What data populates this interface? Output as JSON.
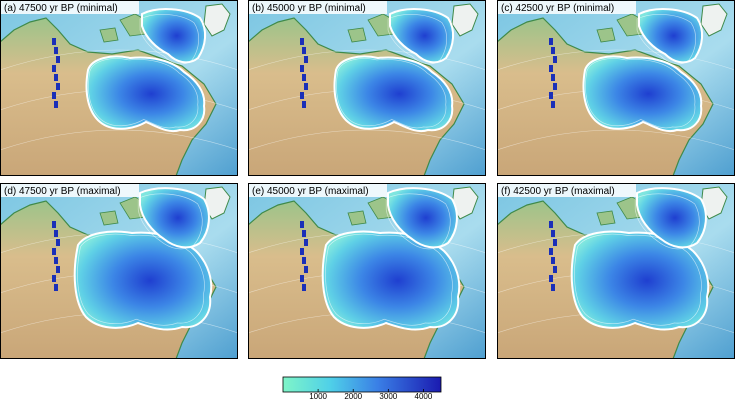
{
  "panels": [
    {
      "label": "(a) 47500 yr BP (minimal)"
    },
    {
      "label": "(b) 45000 yr BP (minimal)"
    },
    {
      "label": "(c) 42500 yr BP (minimal)"
    },
    {
      "label": "(d) 47500 yr BP (maximal)"
    },
    {
      "label": "(e) 45000 yr BP (maximal)"
    },
    {
      "label": "(f) 42500 yr BP (maximal)"
    }
  ],
  "colorbar": {
    "range": [
      0,
      4500
    ],
    "ticks": [
      1000,
      2000,
      3000,
      4000
    ]
  }
}
